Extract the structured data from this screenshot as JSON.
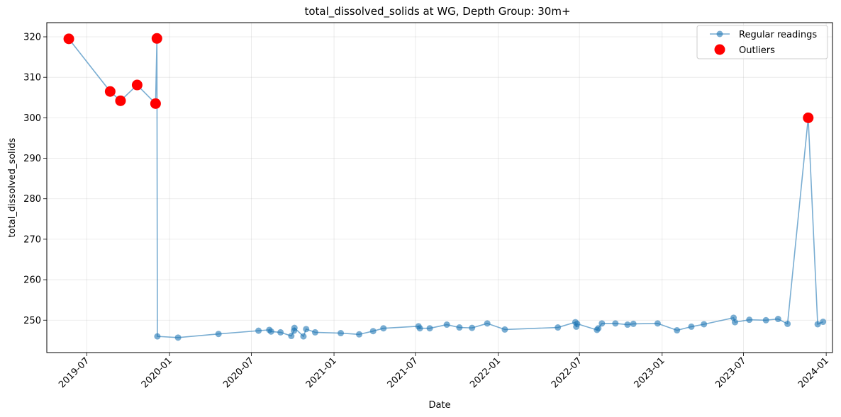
{
  "chart_data": {
    "type": "line",
    "title": "total_dissolved_solids at WG, Depth Group: 30m+",
    "xlabel": "Date",
    "ylabel": "total_dissolved_solids",
    "xlim": [
      "2019-04-03",
      "2024-01-15"
    ],
    "ylim": [
      242,
      323.5
    ],
    "x_ticks": [
      "2019-07",
      "2020-01",
      "2020-07",
      "2021-01",
      "2021-07",
      "2022-01",
      "2022-07",
      "2023-01",
      "2023-07",
      "2024-01"
    ],
    "y_ticks": [
      250,
      260,
      270,
      280,
      290,
      300,
      310,
      320
    ],
    "grid": true,
    "legend_position": "top-right",
    "colors": {
      "regular": "#1f77b4",
      "outlier": "#ff0000"
    },
    "series": [
      {
        "name": "Regular readings",
        "marker": "circle",
        "points": [
          [
            "2019-05-22",
            319.5
          ],
          [
            "2019-08-22",
            306.5
          ],
          [
            "2019-09-14",
            304.2
          ],
          [
            "2019-10-21",
            308.1
          ],
          [
            "2019-12-01",
            303.5
          ],
          [
            "2019-12-04",
            319.6
          ],
          [
            "2019-12-05",
            246.0
          ],
          [
            "2020-01-20",
            245.7
          ],
          [
            "2020-04-19",
            246.6
          ],
          [
            "2020-07-17",
            247.4
          ],
          [
            "2020-08-10",
            247.6
          ],
          [
            "2020-08-14",
            247.2
          ],
          [
            "2020-09-04",
            247.0
          ],
          [
            "2020-09-28",
            246.1
          ],
          [
            "2020-10-04",
            247.4
          ],
          [
            "2020-10-05",
            248.1
          ],
          [
            "2020-10-25",
            246.0
          ],
          [
            "2020-10-31",
            247.8
          ],
          [
            "2020-11-20",
            247.0
          ],
          [
            "2021-01-16",
            246.8
          ],
          [
            "2021-02-26",
            246.5
          ],
          [
            "2021-03-29",
            247.3
          ],
          [
            "2021-04-21",
            248.0
          ],
          [
            "2021-07-08",
            248.5
          ],
          [
            "2021-07-11",
            248.0
          ],
          [
            "2021-08-02",
            248.0
          ],
          [
            "2021-09-09",
            248.9
          ],
          [
            "2021-10-07",
            248.2
          ],
          [
            "2021-11-04",
            248.1
          ],
          [
            "2021-12-08",
            249.2
          ],
          [
            "2022-01-16",
            247.7
          ],
          [
            "2022-05-14",
            248.2
          ],
          [
            "2022-06-22",
            249.5
          ],
          [
            "2022-06-24",
            248.4
          ],
          [
            "2022-06-26",
            249.1
          ],
          [
            "2022-08-09",
            247.6
          ],
          [
            "2022-08-12",
            248.0
          ],
          [
            "2022-08-20",
            249.2
          ],
          [
            "2022-09-19",
            249.2
          ],
          [
            "2022-10-16",
            248.9
          ],
          [
            "2022-10-29",
            249.1
          ],
          [
            "2022-12-22",
            249.2
          ],
          [
            "2023-02-03",
            247.5
          ],
          [
            "2023-03-07",
            248.4
          ],
          [
            "2023-04-04",
            249.0
          ],
          [
            "2023-06-09",
            250.6
          ],
          [
            "2023-06-12",
            249.5
          ],
          [
            "2023-07-14",
            250.1
          ],
          [
            "2023-08-20",
            250.0
          ],
          [
            "2023-09-16",
            250.3
          ],
          [
            "2023-10-07",
            249.1
          ],
          [
            "2023-11-22",
            300.0
          ],
          [
            "2023-12-13",
            249.0
          ],
          [
            "2023-12-25",
            249.6
          ]
        ]
      },
      {
        "name": "Outliers",
        "marker": "circle",
        "points": [
          [
            "2019-05-22",
            319.5
          ],
          [
            "2019-08-22",
            306.5
          ],
          [
            "2019-09-14",
            304.2
          ],
          [
            "2019-10-21",
            308.1
          ],
          [
            "2019-12-01",
            303.5
          ],
          [
            "2019-12-04",
            319.6
          ],
          [
            "2023-11-22",
            300.0
          ]
        ]
      }
    ]
  }
}
